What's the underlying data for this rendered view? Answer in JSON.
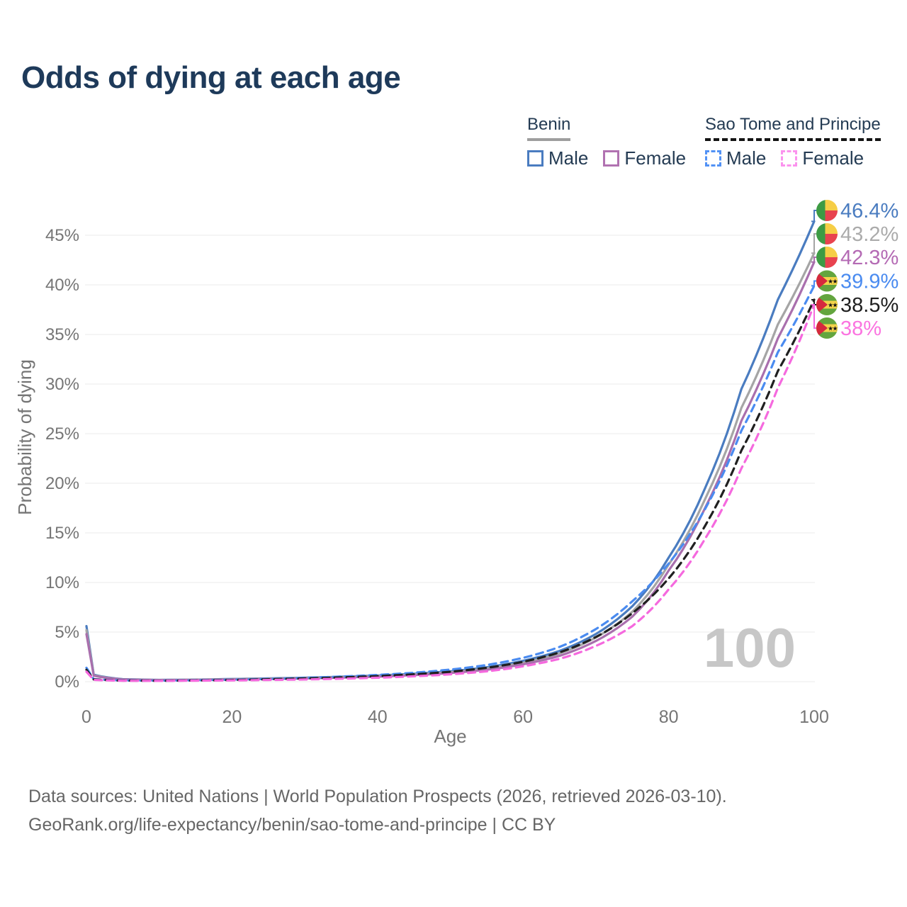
{
  "title": "Odds of dying at each age",
  "legend": {
    "benin": {
      "title": "Benin",
      "underline_color": "#9e9e9e",
      "underline_style": "solid",
      "items": [
        {
          "label": "Male",
          "color": "#4a7cc0",
          "style": "solid"
        },
        {
          "label": "Female",
          "color": "#b172b1",
          "style": "solid"
        }
      ]
    },
    "sao_tome": {
      "title": "Sao Tome and Principe",
      "underline_color": "#141414",
      "underline_style": "dashed",
      "items": [
        {
          "label": "Male",
          "color": "#5292f5",
          "style": "dashed"
        },
        {
          "label": "Female",
          "color": "#fb93ee",
          "style": "dashed"
        }
      ]
    }
  },
  "chart_data": {
    "type": "line",
    "title": "Odds of dying at each age",
    "xlabel": "Age",
    "ylabel": "Probability of dying",
    "xlim": [
      0,
      100
    ],
    "ylim": [
      0,
      47.5
    ],
    "grid": "horizontal",
    "legend_position": "top-right",
    "x_tick_labels": [
      "0",
      "20",
      "40",
      "60",
      "80",
      "100"
    ],
    "y_tick_labels": [
      "0%",
      "5%",
      "10%",
      "15%",
      "20%",
      "25%",
      "30%",
      "35%",
      "40%",
      "45%"
    ],
    "age_watermark": "100",
    "y_units": "percent probability of dying at each age",
    "ages": [
      0,
      1,
      5,
      10,
      15,
      20,
      25,
      30,
      35,
      40,
      45,
      50,
      55,
      60,
      65,
      70,
      75,
      80,
      85,
      90,
      95,
      100
    ],
    "series": [
      {
        "id": "benin-male",
        "name": "Benin Male",
        "style": "solid",
        "color": "#4a7cc0",
        "flag_icon": "benin-flag-icon",
        "end_label": "46.4%",
        "label_color": "#4a7cc0",
        "values": [
          5.6,
          0.7,
          0.25,
          0.18,
          0.2,
          0.27,
          0.33,
          0.4,
          0.5,
          0.62,
          0.8,
          1.05,
          1.45,
          2.1,
          3.1,
          4.8,
          7.6,
          12.5,
          19.5,
          29.5,
          38.5,
          46.4
        ]
      },
      {
        "id": "benin-both",
        "name": "Benin",
        "style": "solid",
        "color": "#a5a5a5",
        "flag_icon": "benin-flag-icon",
        "end_label": "43.2%",
        "label_color": "#ababab",
        "values": [
          5.2,
          0.65,
          0.23,
          0.17,
          0.19,
          0.25,
          0.3,
          0.37,
          0.46,
          0.57,
          0.73,
          0.95,
          1.32,
          1.9,
          2.85,
          4.45,
          7.05,
          11.8,
          18.4,
          27.6,
          36.0,
          43.2
        ]
      },
      {
        "id": "benin-female",
        "name": "Benin Female",
        "style": "solid",
        "color": "#a96fad",
        "flag_icon": "benin-flag-icon",
        "end_label": "42.3%",
        "label_color": "#b46ab4",
        "values": [
          4.8,
          0.6,
          0.22,
          0.16,
          0.18,
          0.22,
          0.27,
          0.33,
          0.41,
          0.51,
          0.66,
          0.87,
          1.2,
          1.75,
          2.6,
          4.1,
          6.55,
          11.2,
          17.5,
          26.3,
          34.6,
          42.3
        ]
      },
      {
        "id": "stp-male",
        "name": "Sao Tome and Principe Male",
        "style": "dashed",
        "color": "#4a8bf0",
        "flag_icon": "sao-tome-flag-icon",
        "end_label": "39.9%",
        "label_color": "#4a8bf0",
        "values": [
          1.4,
          0.25,
          0.12,
          0.1,
          0.14,
          0.2,
          0.28,
          0.38,
          0.52,
          0.68,
          0.9,
          1.22,
          1.68,
          2.4,
          3.5,
          5.3,
          8.1,
          11.9,
          17.4,
          25.3,
          33.2,
          39.9
        ]
      },
      {
        "id": "stp-both",
        "name": "Sao Tome and Principe",
        "style": "dashed",
        "color": "#202020",
        "flag_icon": "sao-tome-flag-icon",
        "end_label": "38.5%",
        "label_color": "#1f1f1f",
        "values": [
          1.2,
          0.22,
          0.11,
          0.09,
          0.12,
          0.17,
          0.24,
          0.32,
          0.43,
          0.56,
          0.74,
          1.0,
          1.4,
          2.0,
          2.95,
          4.5,
          6.9,
          10.4,
          15.7,
          23.3,
          31.3,
          38.5
        ]
      },
      {
        "id": "stp-female",
        "name": "Sao Tome and Principe Female",
        "style": "dashed",
        "color": "#f569de",
        "flag_icon": "sao-tome-flag-icon",
        "end_label": "38%",
        "label_color": "#fb74e0",
        "values": [
          1.0,
          0.18,
          0.09,
          0.08,
          0.1,
          0.13,
          0.17,
          0.22,
          0.3,
          0.4,
          0.54,
          0.74,
          1.04,
          1.55,
          2.3,
          3.6,
          5.6,
          9.3,
          14.4,
          21.5,
          29.6,
          38.0
        ]
      }
    ],
    "flag_colors": {
      "benin": {
        "green": "#3d9b44",
        "yellow": "#f6ce46",
        "red": "#e8434f"
      },
      "sao_tome": {
        "green": "#63a53e",
        "yellow": "#f3d34b",
        "red": "#d6293e",
        "star": "#151515"
      }
    }
  },
  "footer": {
    "line1": "Data sources: United Nations | World Population Prospects (2026, retrieved 2026-03-10).",
    "line2": "GeoRank.org/life-expectancy/benin/sao-tome-and-principe | CC BY"
  }
}
